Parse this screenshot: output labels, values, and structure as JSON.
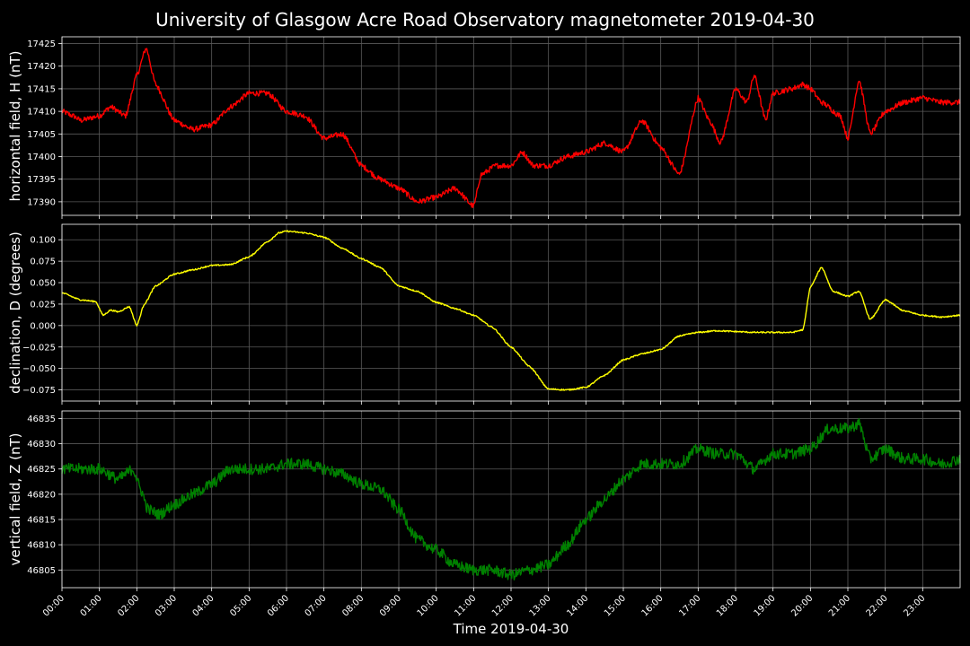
{
  "chart_data": {
    "type": "line",
    "title": "University of Glasgow Acre Road Observatory magnetometer 2019-04-30",
    "xlabel": "Time 2019-04-30",
    "x_ticks": [
      "00:00",
      "01:00",
      "02:00",
      "03:00",
      "04:00",
      "05:00",
      "06:00",
      "07:00",
      "08:00",
      "09:00",
      "10:00",
      "11:00",
      "12:00",
      "13:00",
      "14:00",
      "15:00",
      "16:00",
      "17:00",
      "18:00",
      "19:00",
      "20:00",
      "21:00",
      "22:00",
      "23:00"
    ],
    "xlim_hours": [
      0,
      24
    ],
    "grid": true,
    "panels": [
      {
        "ylabel": "horizontal field, H (nT)",
        "color": "#ff0000",
        "ylim": [
          17387,
          17426.5
        ],
        "y_ticks": [
          "17390",
          "17395",
          "17400",
          "17405",
          "17410",
          "17415",
          "17420",
          "17425"
        ],
        "y_tick_values": [
          17390,
          17395,
          17400,
          17405,
          17410,
          17415,
          17420,
          17425
        ],
        "noise": 0.6,
        "x": [
          0,
          0.3,
          0.5,
          1.0,
          1.3,
          1.7,
          2.0,
          2.25,
          2.5,
          3.0,
          3.5,
          4.0,
          4.5,
          5.0,
          5.5,
          6.0,
          6.5,
          7.0,
          7.5,
          8.0,
          8.5,
          9.0,
          9.5,
          10.0,
          10.5,
          11.0,
          11.2,
          11.6,
          12.0,
          12.3,
          12.6,
          13.0,
          13.5,
          14.0,
          14.5,
          15.0,
          15.5,
          16.0,
          16.5,
          17.0,
          17.3,
          17.6,
          18.0,
          18.3,
          18.5,
          18.8,
          19.0,
          19.5,
          19.8,
          20.0,
          20.3,
          20.8,
          21.0,
          21.3,
          21.6,
          22.0,
          22.5,
          23.0,
          23.5,
          24.0
        ],
        "values": [
          17410,
          17409,
          17408,
          17409,
          17411,
          17409,
          17418,
          17424,
          17416,
          17408,
          17406,
          17407,
          17411,
          17414,
          17414,
          17410,
          17409,
          17404,
          17405,
          17398,
          17395,
          17393,
          17390,
          17391,
          17393,
          17389,
          17396,
          17398,
          17398,
          17401,
          17398,
          17398,
          17400,
          17401,
          17403,
          17401,
          17408,
          17402,
          17396,
          17413,
          17408,
          17403,
          17415,
          17412,
          17418,
          17408,
          17414,
          17415,
          17416,
          17415,
          17412,
          17409,
          17404,
          17417,
          17405,
          17410,
          17412,
          17413,
          17412,
          17412
        ]
      },
      {
        "ylabel": "declination, D (degrees)",
        "color": "#ffff00",
        "ylim": [
          -0.088,
          0.118
        ],
        "y_ticks": [
          "−0.075",
          "−0.050",
          "−0.025",
          "0.000",
          "0.025",
          "0.050",
          "0.075",
          "0.100"
        ],
        "y_tick_values": [
          -0.075,
          -0.05,
          -0.025,
          0,
          0.025,
          0.05,
          0.075,
          0.1
        ],
        "noise": 0.0008,
        "x": [
          0,
          0.5,
          0.9,
          1.1,
          1.3,
          1.5,
          1.8,
          2.0,
          2.2,
          2.5,
          3.0,
          3.5,
          4.0,
          4.5,
          5.0,
          5.5,
          5.8,
          6.0,
          6.5,
          7.0,
          7.5,
          8.0,
          8.5,
          9.0,
          9.5,
          10.0,
          10.5,
          11.0,
          11.5,
          12.0,
          12.5,
          13.0,
          13.5,
          14.0,
          14.5,
          15.0,
          15.5,
          16.0,
          16.5,
          17.0,
          17.5,
          18.0,
          18.5,
          19.0,
          19.5,
          19.8,
          20.0,
          20.3,
          20.6,
          21.0,
          21.3,
          21.6,
          22.0,
          22.5,
          23.0,
          23.5,
          24.0
        ],
        "values": [
          0.038,
          0.03,
          0.028,
          0.012,
          0.018,
          0.016,
          0.022,
          0.0,
          0.025,
          0.046,
          0.06,
          0.065,
          0.07,
          0.071,
          0.08,
          0.098,
          0.108,
          0.11,
          0.108,
          0.103,
          0.09,
          0.078,
          0.068,
          0.046,
          0.04,
          0.027,
          0.02,
          0.012,
          -0.002,
          -0.025,
          -0.048,
          -0.074,
          -0.075,
          -0.072,
          -0.058,
          -0.04,
          -0.033,
          -0.028,
          -0.012,
          -0.008,
          -0.006,
          -0.007,
          -0.008,
          -0.008,
          -0.008,
          -0.005,
          0.045,
          0.068,
          0.04,
          0.034,
          0.04,
          0.007,
          0.03,
          0.017,
          0.012,
          0.01,
          0.012
        ]
      },
      {
        "ylabel": "vertical field, Z (nT)",
        "color": "#008000",
        "ylim": [
          46801.5,
          46836.5
        ],
        "y_ticks": [
          "46805",
          "46810",
          "46815",
          "46820",
          "46825",
          "46830",
          "46835"
        ],
        "y_tick_values": [
          46805,
          46810,
          46815,
          46820,
          46825,
          46830,
          46835
        ],
        "noise": 0.7,
        "x": [
          0,
          0.5,
          1.0,
          1.5,
          1.9,
          2.1,
          2.3,
          2.6,
          3.0,
          3.5,
          4.0,
          4.5,
          5.0,
          5.5,
          6.0,
          6.5,
          7.0,
          7.5,
          8.0,
          8.5,
          9.0,
          9.5,
          10.0,
          10.5,
          11.0,
          11.5,
          12.0,
          12.5,
          13.0,
          13.5,
          14.0,
          14.5,
          15.0,
          15.5,
          16.0,
          16.5,
          17.0,
          17.5,
          18.0,
          18.5,
          19.0,
          19.5,
          20.0,
          20.5,
          21.0,
          21.3,
          21.6,
          22.0,
          22.5,
          23.0,
          23.5,
          24.0
        ],
        "values": [
          46825,
          46825,
          46825,
          46823,
          46825,
          46821,
          46817,
          46816,
          46818,
          46820,
          46822,
          46825,
          46825,
          46825,
          46826,
          46826,
          46825,
          46824,
          46822,
          46821,
          46817,
          46811,
          46809,
          46806,
          46805,
          46805,
          46804,
          46805,
          46806,
          46810,
          46815,
          46819,
          46823,
          46826,
          46826,
          46826,
          46829,
          46828,
          46828,
          46825,
          46828,
          46828,
          46829,
          46833,
          46833,
          46834,
          46827,
          46829,
          46827,
          46827,
          46826,
          46827
        ]
      }
    ]
  }
}
